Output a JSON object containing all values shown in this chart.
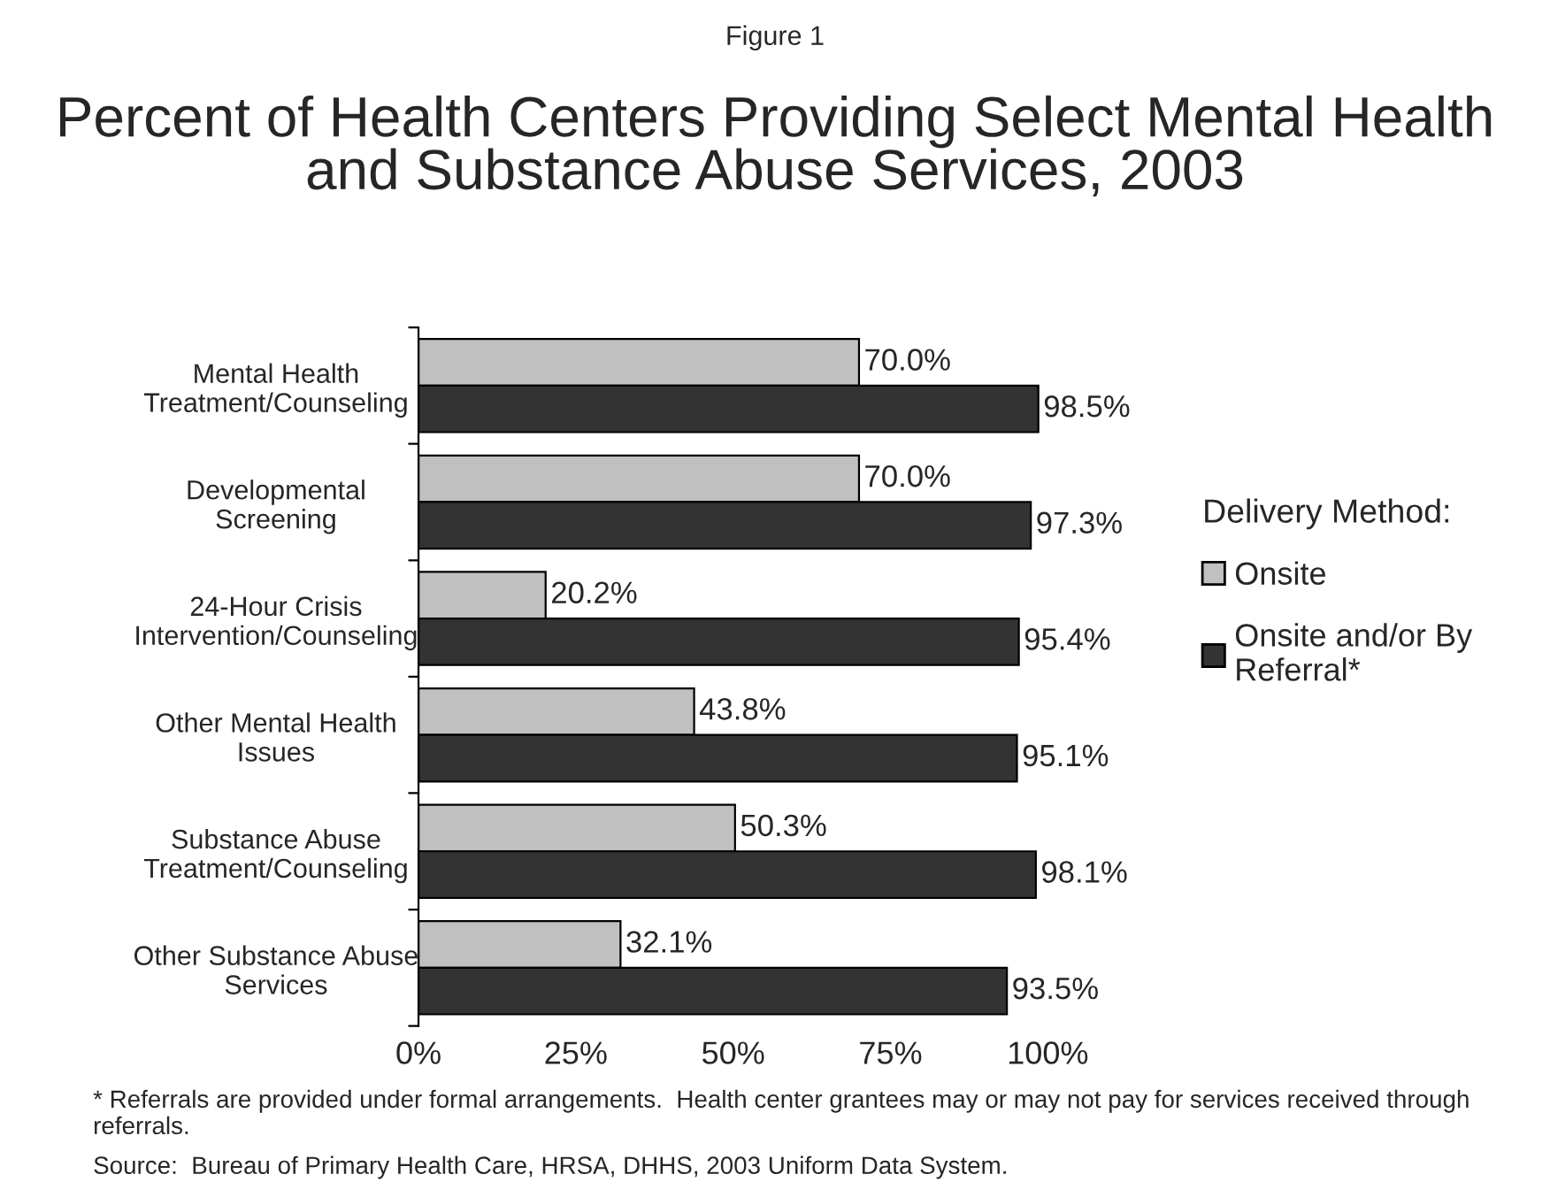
{
  "chart_data": {
    "type": "bar",
    "orientation": "horizontal",
    "subtitle": "Figure 1",
    "title": "Percent of Health Centers Providing Select Mental Health and Substance Abuse Services, 2003",
    "categories": [
      "Mental Health\nTreatment/Counseling",
      "Developmental\nScreening",
      "24-Hour Crisis\nIntervention/Counseling",
      "Other Mental Health\nIssues",
      "Substance Abuse\nTreatment/Counseling",
      "Other Substance Abuse\nServices"
    ],
    "series": [
      {
        "name": "Onsite",
        "color": "#c0c0c0",
        "values": [
          70.0,
          70.0,
          20.2,
          43.8,
          50.3,
          32.1
        ],
        "value_labels": [
          "70.0%",
          "70.0%",
          "20.2%",
          "43.8%",
          "50.3%",
          "32.1%"
        ]
      },
      {
        "name": "Onsite and/or By\nReferral*",
        "color": "#333333",
        "values": [
          98.5,
          97.3,
          95.4,
          95.1,
          98.1,
          93.5
        ],
        "value_labels": [
          "98.5%",
          "97.3%",
          "95.4%",
          "95.1%",
          "98.1%",
          "93.5%"
        ]
      }
    ],
    "xlim": [
      0,
      100
    ],
    "xticks": [
      {
        "value": 0,
        "label": "0%"
      },
      {
        "value": 25,
        "label": "25%"
      },
      {
        "value": 50,
        "label": "50%"
      },
      {
        "value": 75,
        "label": "75%"
      },
      {
        "value": 100,
        "label": "100%"
      }
    ],
    "legend": "right",
    "legend_title": "Delivery Method:",
    "grid": false,
    "annotations": [
      "* Referrals are provided under formal arrangements.  Health center grantees may or may not pay for services received through referrals.",
      "Source:  Bureau of Primary Health Care, HRSA, DHHS, 2003 Uniform Data System."
    ]
  }
}
